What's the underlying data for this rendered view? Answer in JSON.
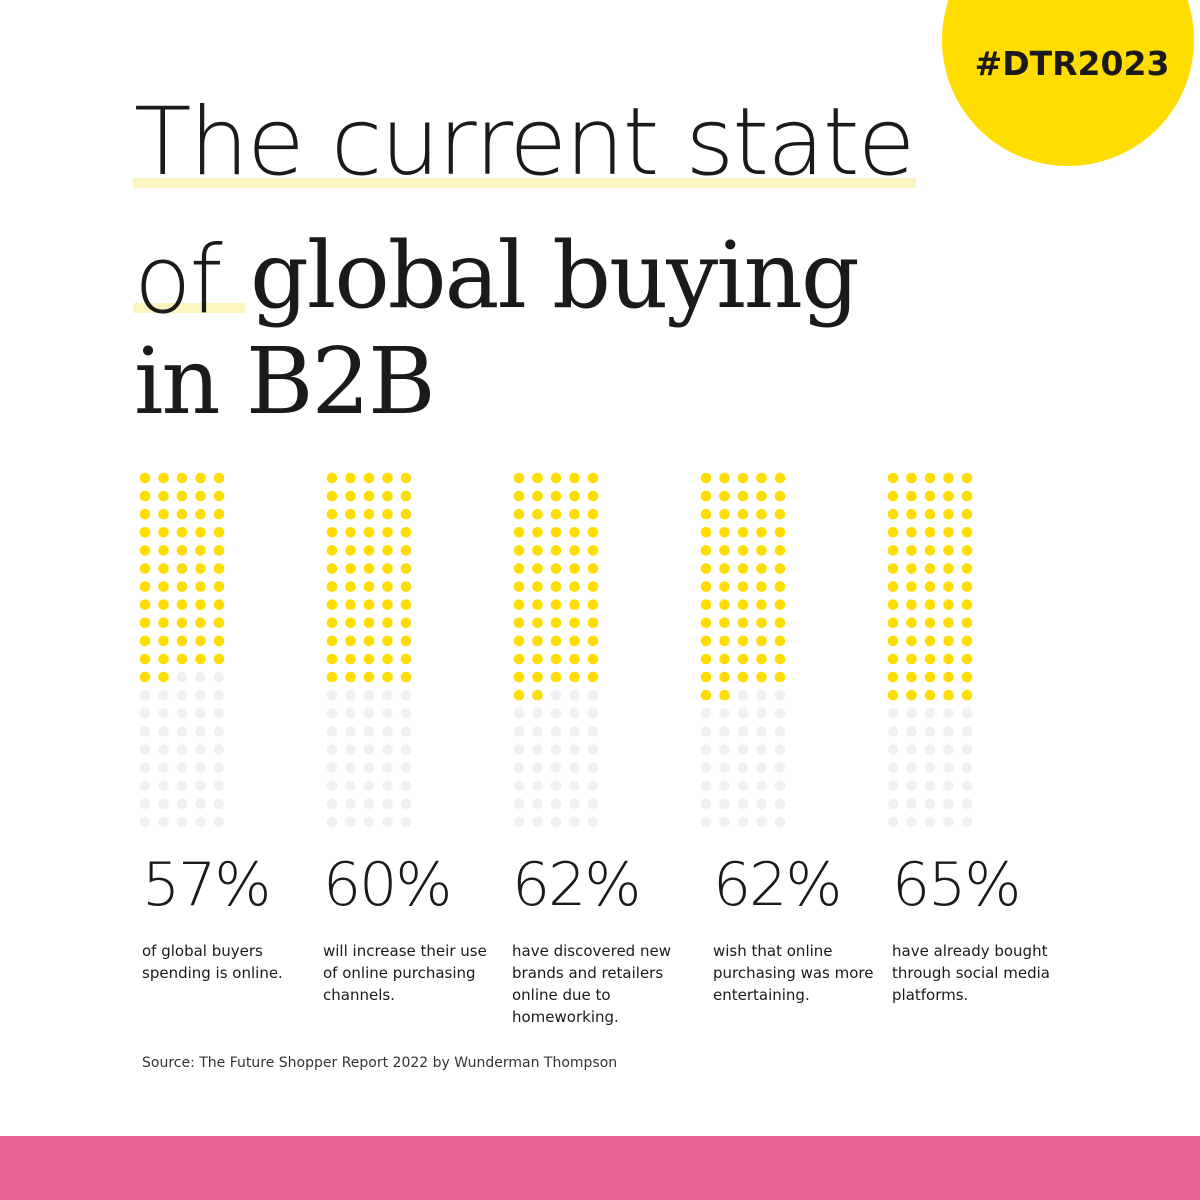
{
  "chart_data": {
    "type": "waffle",
    "hashtag": "#DTR2023",
    "title_lines": [
      "The current state",
      "of",
      "global buying",
      "in B2B"
    ],
    "categories": [
      "of global buyers spending is online.",
      "will increase their use of online purchasing channels.",
      "have discovered new brands and retailers online due to homeworking.",
      "wish that online purchasing was more entertaining.",
      "have already bought through social media platforms."
    ],
    "values": [
      57,
      60,
      62,
      62,
      65
    ],
    "value_labels": [
      "57%",
      "60%",
      "62%",
      "62%",
      "65%"
    ],
    "total": 100,
    "columns": 5,
    "color": "#ffdd00",
    "empty_color": "#f0f0f0",
    "source": "Source: The Future Shopper Report 2022 by Wunderman Thompson"
  }
}
